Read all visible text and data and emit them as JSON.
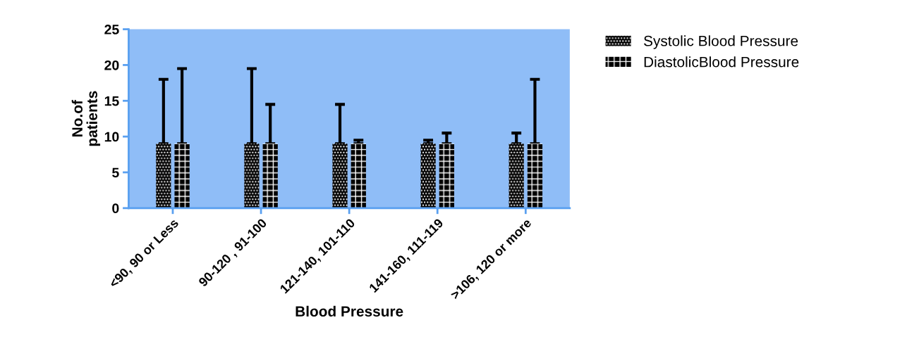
{
  "chart_data": {
    "type": "bar",
    "xlabel": "Blood Pressure",
    "ylabel": "No.of\npatients",
    "categories": [
      "<90, 90 or Less",
      "90-120 , 91-100",
      "121-140, 101-110",
      "141-160, 111-119",
      ">106, 120 or more"
    ],
    "series": [
      {
        "name": "Systolic Blood Pressure",
        "color": "#000000",
        "values": [
          9,
          9,
          9,
          9,
          9
        ],
        "errors": [
          [
            9,
            18
          ],
          [
            9,
            19.5
          ],
          [
            9,
            14.5
          ],
          [
            9,
            9.5
          ],
          [
            9,
            10.5
          ]
        ]
      },
      {
        "name": "DiastolicBlood Pressure",
        "color": "#000000",
        "values": [
          9,
          9,
          9,
          9,
          9
        ],
        "errors": [
          [
            9,
            19.5
          ],
          [
            9,
            14.5
          ],
          [
            9,
            9.5
          ],
          [
            9,
            10.5
          ],
          [
            9,
            18
          ]
        ]
      }
    ],
    "ylim": [
      0,
      25
    ],
    "yticks": [
      0,
      5,
      10,
      15,
      20,
      25
    ],
    "grid": false,
    "legend": "top right"
  }
}
